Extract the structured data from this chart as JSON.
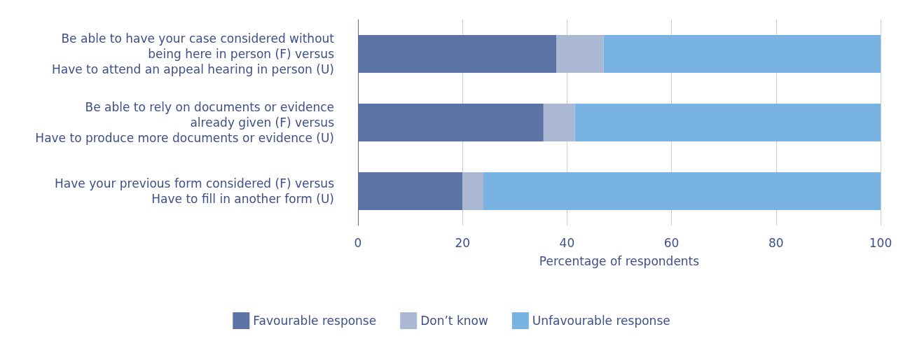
{
  "chart_data": {
    "type": "bar",
    "orientation": "horizontal",
    "stacked": true,
    "categories": [
      "Be able to have your case considered without\nbeing here in person (F) versus\nHave to attend an appeal hearing in person (U)",
      "Be able to rely on documents or evidence\nalready given (F) versus\nHave to produce more documents or evidence (U)",
      "Have your previous form considered (F) versus\nHave to fill in another form (U)"
    ],
    "series": [
      {
        "name": "Favourable response",
        "color": "#5b73a5",
        "values": [
          38,
          35.5,
          20
        ]
      },
      {
        "name": "Don’t know",
        "color": "#abb8d3",
        "values": [
          9,
          6,
          4
        ]
      },
      {
        "name": "Unfavourable response",
        "color": "#79b3e3",
        "values": [
          53,
          58.5,
          76
        ]
      }
    ],
    "xlabel": "Percentage of respondents",
    "xlim": [
      0,
      100
    ],
    "xticks": [
      0,
      20,
      40,
      60,
      80,
      100
    ],
    "grid": "x",
    "legend": "bottom"
  }
}
